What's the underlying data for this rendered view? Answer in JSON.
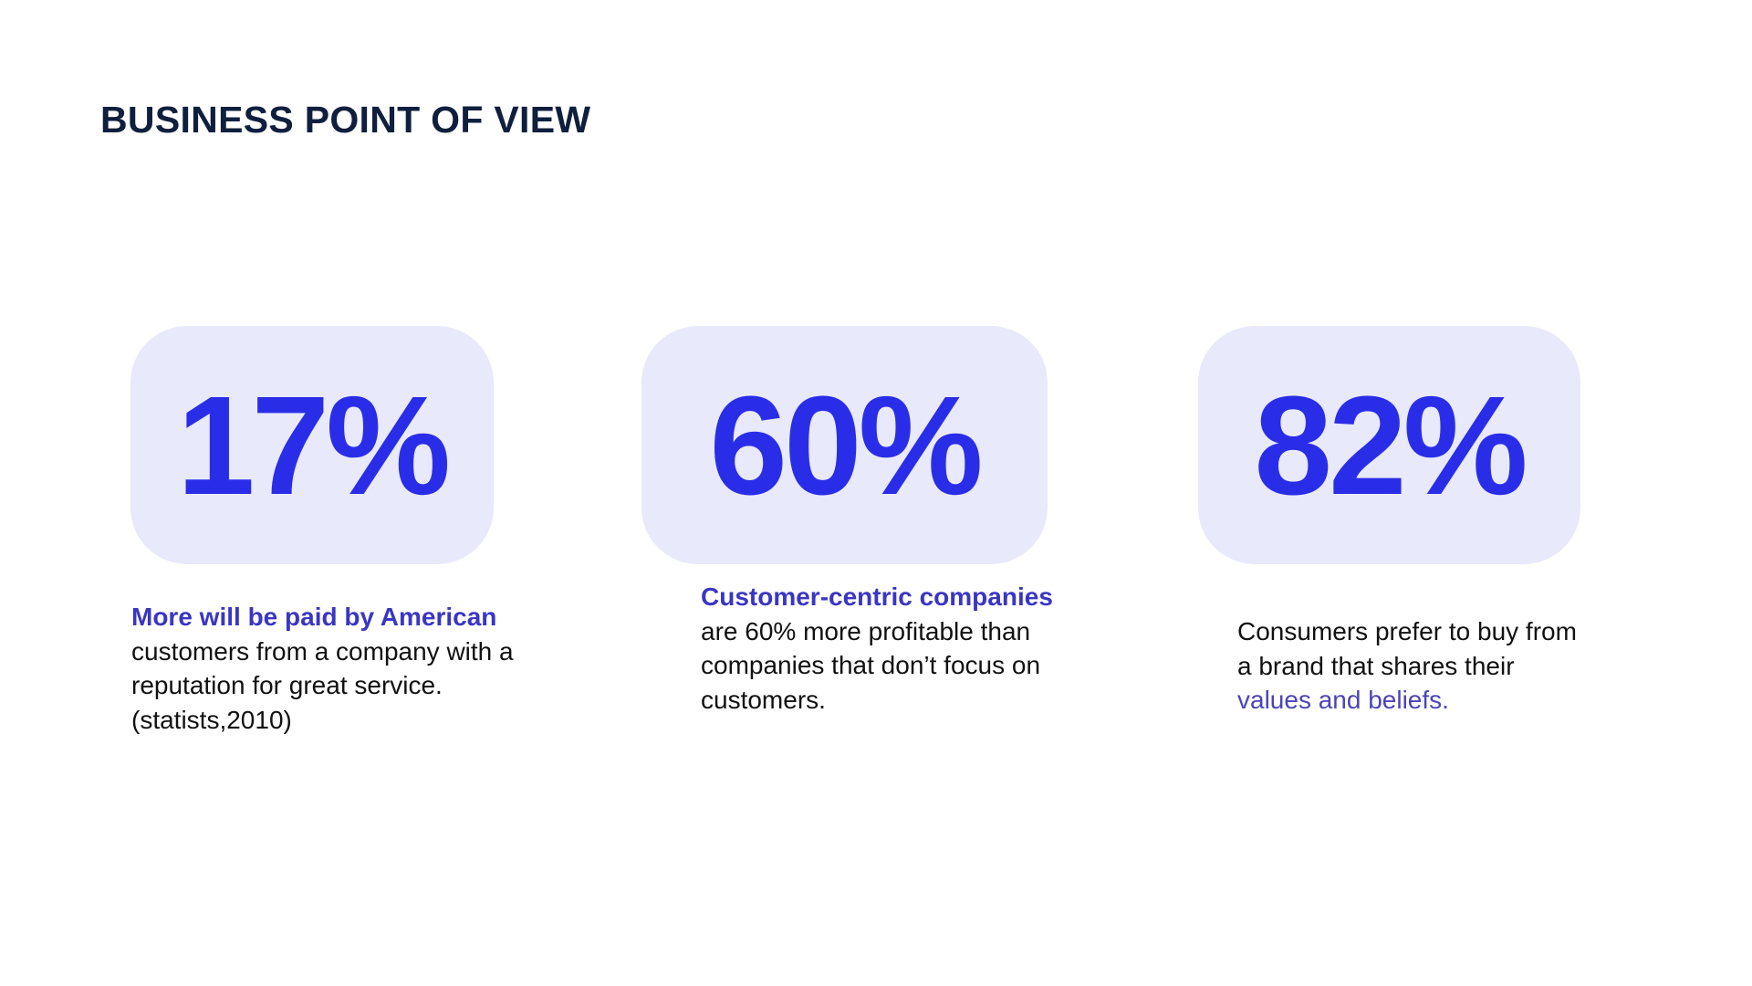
{
  "title": "BUSINESS POINT OF VIEW",
  "colors": {
    "title": "#0f1f3d",
    "stat_value": "#2a2de8",
    "stat_box_bg": "#e8e9fb",
    "highlight": "#3a36c4",
    "body_text": "#111111"
  },
  "stats": [
    {
      "value": "17%",
      "highlight": "More will be paid by American",
      "text_after": " customers from a company with a reputation for great service. (statists,2010)"
    },
    {
      "value": "60%",
      "highlight": "Customer-centric companies",
      "text_after": " are 60% more profitable than companies that don’t focus on customers."
    },
    {
      "value": "82%",
      "text_before": "Consumers prefer to buy from a brand that shares their ",
      "highlight": "values and beliefs."
    }
  ]
}
